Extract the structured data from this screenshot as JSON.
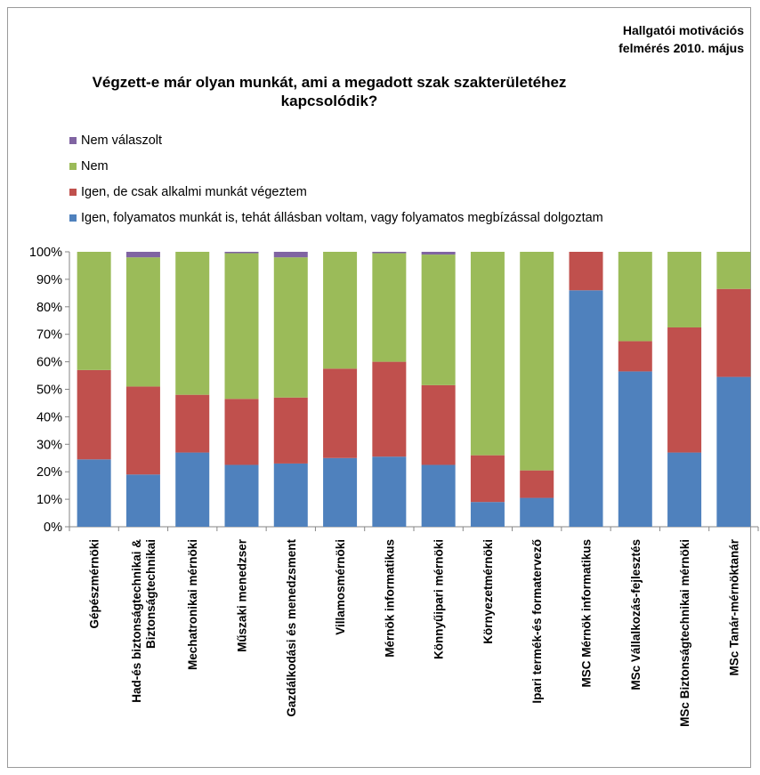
{
  "header": {
    "survey_line1": "Hallgatói motivációs",
    "survey_line2": "felmérés 2010. május"
  },
  "chart_data": {
    "type": "bar",
    "stacked": true,
    "percent": true,
    "title_line1": "Végzett-e már olyan munkát, ami a megadott szak szakterületéhez",
    "title_line2": "kapcsolódik?",
    "categories": [
      "Gépészmérnöki",
      "Had-és biztonságtechnikai & Biztonságtechnikai",
      "Mechatronikai mérnöki",
      "Műszaki menedzser",
      "Gazdálkodási és menedzsment",
      "Villamosmérnöki",
      "Mérnök informatikus",
      "Könnyűipari mérnöki",
      "Környezetmérnöki",
      "Ipari termék-és formatervező",
      "MSC Mérnök informatikus",
      "MSc Vállalkozás-fejlesztés",
      "MSc Biztonságtechnikai mérnöki",
      "MSc Tanár-mérnöktanár"
    ],
    "category_label_lines": [
      [
        "Gépészmérnöki"
      ],
      [
        "Had-és biztonságtechnikai &",
        "Biztonságtechnikai"
      ],
      [
        "Mechatronikai mérnöki"
      ],
      [
        "Műszaki menedzser"
      ],
      [
        "Gazdálkodási és menedzsment"
      ],
      [
        "Villamosmérnöki"
      ],
      [
        "Mérnök informatikus"
      ],
      [
        "Könnyűipari mérnöki"
      ],
      [
        "Környezetmérnöki"
      ],
      [
        "Ipari termék-és formatervező"
      ],
      [
        "MSC Mérnök informatikus"
      ],
      [
        "MSc Vállalkozás-fejlesztés"
      ],
      [
        "MSc Biztonságtechnikai mérnöki"
      ],
      [
        "MSc Tanár-mérnöktanár"
      ]
    ],
    "series": [
      {
        "name": "Igen, folyamatos munkát is, tehát állásban voltam, vagy folyamatos megbízással dolgoztam",
        "color": "#4f81bd",
        "values": [
          24.5,
          19,
          27,
          22.5,
          23,
          25,
          25.5,
          22.5,
          9,
          10.5,
          86,
          56.5,
          27,
          54.5
        ]
      },
      {
        "name": "Igen, de csak alkalmi munkát végeztem",
        "color": "#c0504d",
        "values": [
          32.5,
          32,
          21,
          24,
          24,
          32.5,
          34.5,
          29,
          17,
          10,
          14,
          11,
          45.5,
          32
        ]
      },
      {
        "name": "Nem",
        "color": "#9bbb59",
        "values": [
          43,
          47,
          52,
          53,
          51,
          42.5,
          39.5,
          47.5,
          74,
          79.5,
          0,
          32.5,
          27.5,
          13.5
        ]
      },
      {
        "name": "Nem válaszolt",
        "color": "#8064a2",
        "values": [
          0,
          2,
          0,
          0.5,
          2,
          0,
          0.5,
          1,
          0,
          0,
          0,
          0,
          0,
          0
        ]
      }
    ],
    "legend_order": [
      3,
      2,
      1,
      0
    ],
    "legend_position": "top-left",
    "yticks": [
      "0%",
      "10%",
      "20%",
      "30%",
      "40%",
      "50%",
      "60%",
      "70%",
      "80%",
      "90%",
      "100%"
    ],
    "ylim": [
      0,
      100
    ],
    "grid": false
  }
}
